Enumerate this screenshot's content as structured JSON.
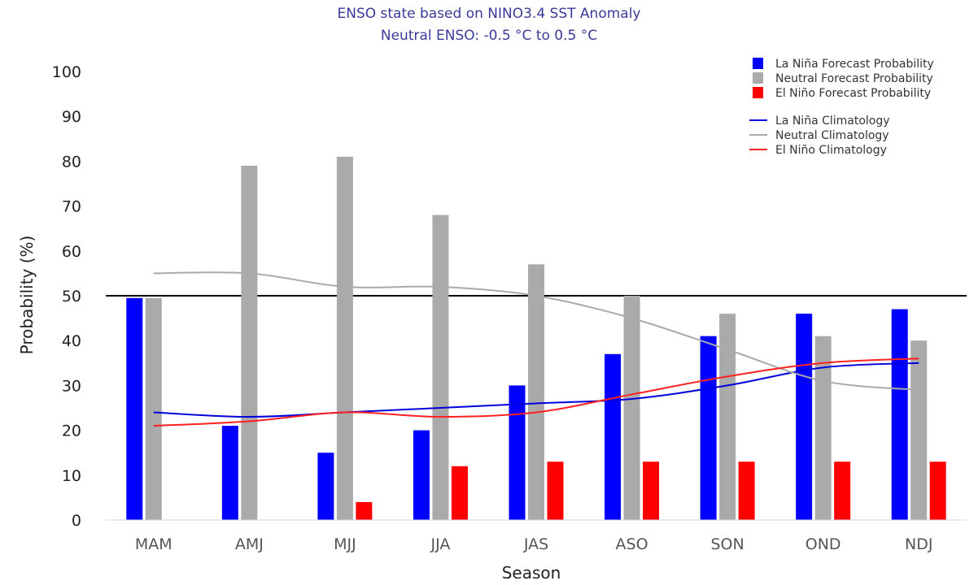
{
  "chart_data": {
    "type": "bar",
    "title": "ENSO state based on NINO3.4 SST Anomaly",
    "subtitle": "Neutral ENSO: -0.5 °C to 0.5 °C",
    "xlabel": "Season",
    "ylabel": "Probability (%)",
    "ylim": [
      0,
      100
    ],
    "yticks": [
      0,
      10,
      20,
      30,
      40,
      50,
      60,
      70,
      80,
      90,
      100
    ],
    "reference_line": 50,
    "categories": [
      "MAM",
      "AMJ",
      "MJJ",
      "JJA",
      "JAS",
      "ASO",
      "SON",
      "OND",
      "NDJ"
    ],
    "series": [
      {
        "name": "La Niña Forecast Probability",
        "kind": "bar",
        "color": "#0000ff",
        "values": [
          49.5,
          21,
          15,
          20,
          30,
          37,
          41,
          46,
          47
        ]
      },
      {
        "name": "Neutral Forecast Probability",
        "kind": "bar",
        "color": "#aaaaaa",
        "values": [
          49.5,
          79,
          81,
          68,
          57,
          50,
          46,
          41,
          40
        ]
      },
      {
        "name": "El Niño Forecast Probability",
        "kind": "bar",
        "color": "#ff0000",
        "values": [
          0,
          0,
          4,
          12,
          13,
          13,
          13,
          13,
          13
        ]
      },
      {
        "name": "La Niña Climatology",
        "kind": "line",
        "color": "#0000dd",
        "values": [
          24,
          23,
          24,
          25,
          26,
          27,
          30,
          34,
          35
        ]
      },
      {
        "name": "Neutral Climatology",
        "kind": "line",
        "color": "#aaaaaa",
        "values": [
          55,
          55,
          52,
          52,
          50,
          45,
          38,
          31,
          29
        ]
      },
      {
        "name": "El Niño Climatology",
        "kind": "line",
        "color": "#ff2020",
        "values": [
          21,
          22,
          24,
          23,
          24,
          28,
          32,
          35,
          36
        ]
      }
    ],
    "legend_position": "top-right",
    "grid": false
  }
}
